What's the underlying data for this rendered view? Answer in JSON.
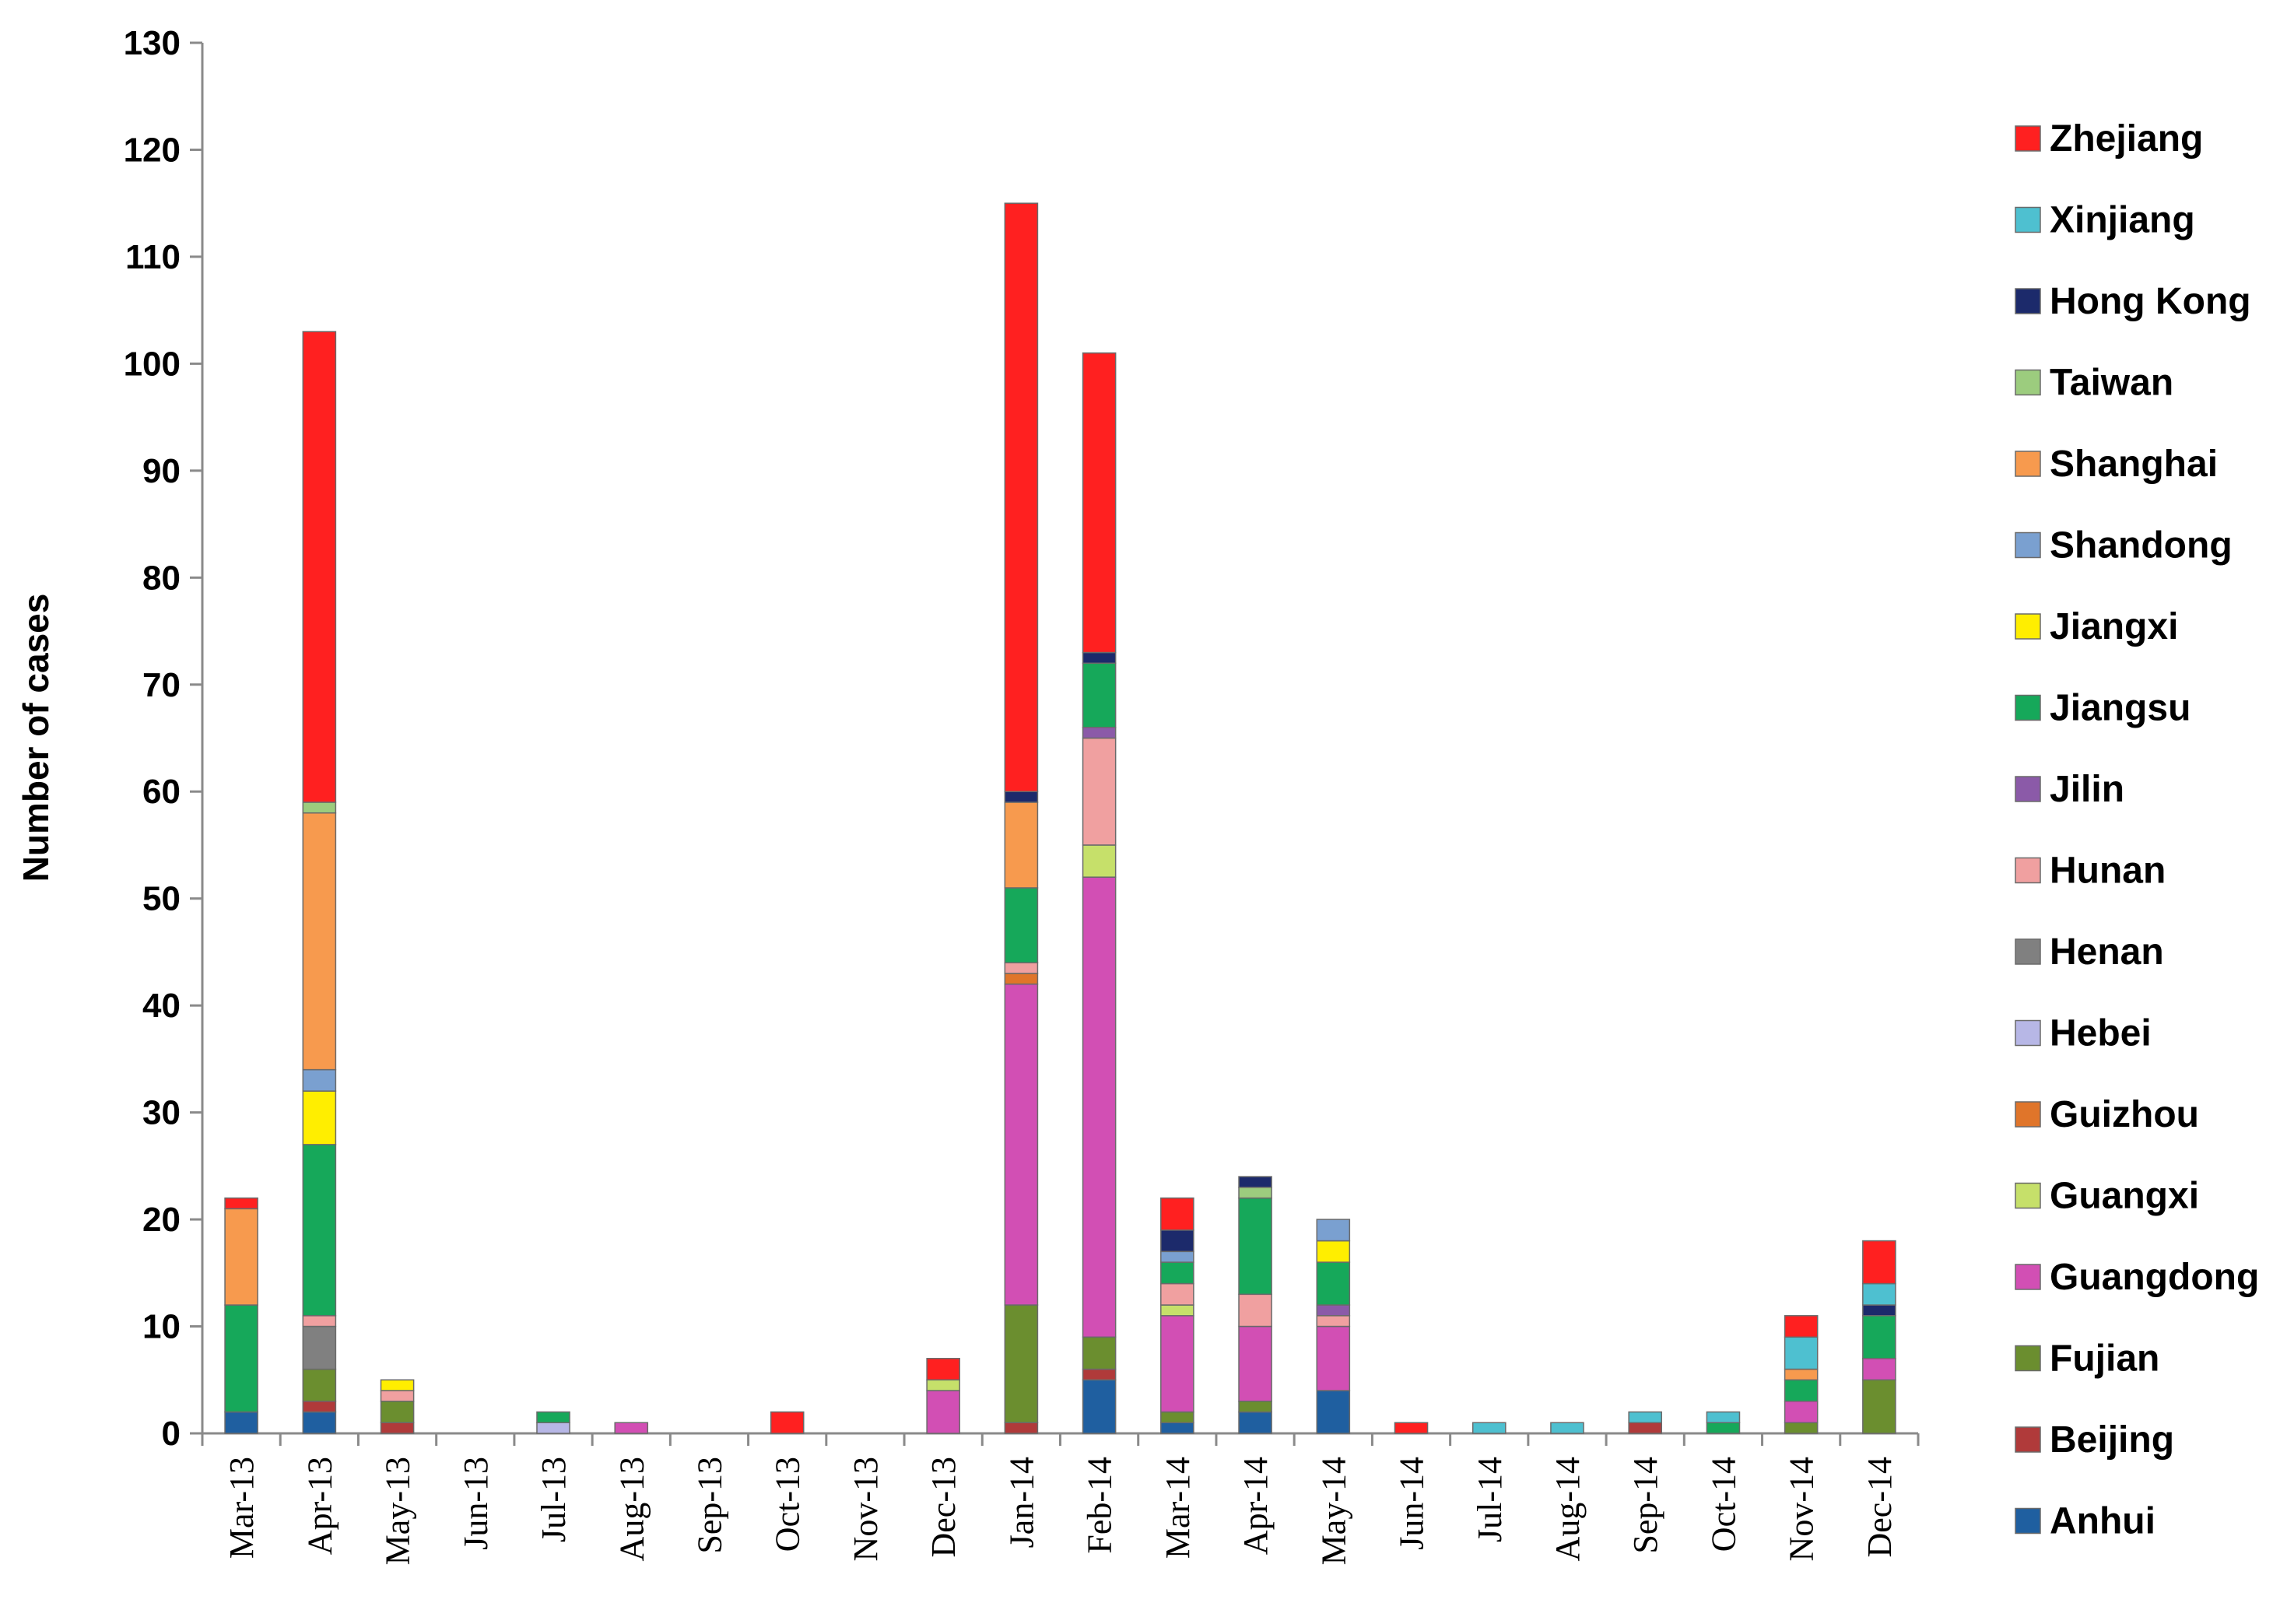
{
  "chart_data": {
    "type": "bar",
    "stacked": true,
    "ylabel": "Number of cases",
    "xlabel": "",
    "ylim": [
      0,
      130
    ],
    "yticks": [
      0,
      10,
      20,
      30,
      40,
      50,
      60,
      70,
      80,
      90,
      100,
      110,
      120,
      130
    ],
    "categories": [
      "Mar-13",
      "Apr-13",
      "May-13",
      "Jun-13",
      "Jul-13",
      "Aug-13",
      "Sep-13",
      "Oct-13",
      "Nov-13",
      "Dec-13",
      "Jan-14",
      "Feb-14",
      "Mar-14",
      "Apr-14",
      "May-14",
      "Jun-14",
      "Jul-14",
      "Aug-14",
      "Sep-14",
      "Oct-14",
      "Nov-14",
      "Dec-14"
    ],
    "legend_position": "right",
    "series": [
      {
        "name": "Anhui",
        "color": "#1f5fa0",
        "values": [
          2,
          2,
          0,
          0,
          0,
          0,
          0,
          0,
          0,
          0,
          0,
          5,
          1,
          2,
          4,
          0,
          0,
          0,
          0,
          0,
          0,
          0
        ]
      },
      {
        "name": "Beijing",
        "color": "#b03a3a",
        "values": [
          0,
          1,
          1,
          0,
          0,
          0,
          0,
          0,
          0,
          0,
          1,
          1,
          0,
          0,
          0,
          0,
          0,
          0,
          1,
          0,
          0,
          0
        ]
      },
      {
        "name": "Fujian",
        "color": "#6b8e2f",
        "values": [
          0,
          3,
          2,
          0,
          0,
          0,
          0,
          0,
          0,
          0,
          11,
          3,
          1,
          1,
          0,
          0,
          0,
          0,
          0,
          0,
          1,
          5
        ]
      },
      {
        "name": "Guangdong",
        "color": "#d24fb4",
        "values": [
          0,
          0,
          0,
          0,
          0,
          1,
          0,
          0,
          0,
          4,
          30,
          43,
          9,
          7,
          6,
          0,
          0,
          0,
          0,
          0,
          2,
          2
        ]
      },
      {
        "name": "Guangxi",
        "color": "#c6e06a",
        "values": [
          0,
          0,
          0,
          0,
          0,
          0,
          0,
          0,
          0,
          1,
          0,
          3,
          1,
          0,
          0,
          0,
          0,
          0,
          0,
          0,
          0,
          0
        ]
      },
      {
        "name": "Guizhou",
        "color": "#e0752a",
        "values": [
          0,
          0,
          0,
          0,
          0,
          0,
          0,
          0,
          0,
          0,
          1,
          0,
          0,
          0,
          0,
          0,
          0,
          0,
          0,
          0,
          0,
          0
        ]
      },
      {
        "name": "Hebei",
        "color": "#b7b7e6",
        "values": [
          0,
          0,
          0,
          0,
          1,
          0,
          0,
          0,
          0,
          0,
          0,
          0,
          0,
          0,
          0,
          0,
          0,
          0,
          0,
          0,
          0,
          0
        ]
      },
      {
        "name": "Henan",
        "color": "#808080",
        "values": [
          0,
          4,
          0,
          0,
          0,
          0,
          0,
          0,
          0,
          0,
          0,
          0,
          0,
          0,
          0,
          0,
          0,
          0,
          0,
          0,
          0,
          0
        ]
      },
      {
        "name": "Hunan",
        "color": "#f0a0a0",
        "values": [
          0,
          1,
          1,
          0,
          0,
          0,
          0,
          0,
          0,
          0,
          1,
          10,
          2,
          3,
          1,
          0,
          0,
          0,
          0,
          0,
          0,
          0
        ]
      },
      {
        "name": "Jilin",
        "color": "#8b5aa8",
        "values": [
          0,
          0,
          0,
          0,
          0,
          0,
          0,
          0,
          0,
          0,
          0,
          1,
          0,
          0,
          1,
          0,
          0,
          0,
          0,
          0,
          0,
          0
        ]
      },
      {
        "name": "Jiangsu",
        "color": "#16a85a",
        "values": [
          10,
          16,
          0,
          0,
          1,
          0,
          0,
          0,
          0,
          0,
          7,
          6,
          2,
          9,
          4,
          0,
          0,
          0,
          0,
          1,
          2,
          4
        ]
      },
      {
        "name": "Jiangxi",
        "color": "#ffee00",
        "values": [
          0,
          5,
          1,
          0,
          0,
          0,
          0,
          0,
          0,
          0,
          0,
          0,
          0,
          0,
          2,
          0,
          0,
          0,
          0,
          0,
          0,
          0
        ]
      },
      {
        "name": "Shandong",
        "color": "#7aa0d0",
        "values": [
          0,
          2,
          0,
          0,
          0,
          0,
          0,
          0,
          0,
          0,
          0,
          0,
          1,
          0,
          2,
          0,
          0,
          0,
          0,
          0,
          0,
          0
        ]
      },
      {
        "name": "Shanghai",
        "color": "#f79a4e",
        "values": [
          9,
          24,
          0,
          0,
          0,
          0,
          0,
          0,
          0,
          0,
          8,
          0,
          0,
          0,
          0,
          0,
          0,
          0,
          0,
          0,
          1,
          0
        ]
      },
      {
        "name": "Taiwan",
        "color": "#9ccc7e",
        "values": [
          0,
          1,
          0,
          0,
          0,
          0,
          0,
          0,
          0,
          0,
          0,
          0,
          0,
          1,
          0,
          0,
          0,
          0,
          0,
          0,
          0,
          0
        ]
      },
      {
        "name": "Hong Kong",
        "color": "#1c2a6b",
        "values": [
          0,
          0,
          0,
          0,
          0,
          0,
          0,
          0,
          0,
          0,
          1,
          1,
          2,
          1,
          0,
          0,
          0,
          0,
          0,
          0,
          0,
          1
        ]
      },
      {
        "name": "Xinjiang",
        "color": "#4ec0d0",
        "values": [
          0,
          0,
          0,
          0,
          0,
          0,
          0,
          0,
          0,
          0,
          0,
          0,
          0,
          0,
          0,
          0,
          1,
          1,
          1,
          1,
          3,
          2
        ]
      },
      {
        "name": "Zhejiang",
        "color": "#ff2020",
        "values": [
          1,
          44,
          0,
          0,
          0,
          0,
          0,
          2,
          0,
          2,
          55,
          28,
          3,
          0,
          0,
          1,
          0,
          0,
          0,
          0,
          2,
          4
        ]
      }
    ]
  }
}
